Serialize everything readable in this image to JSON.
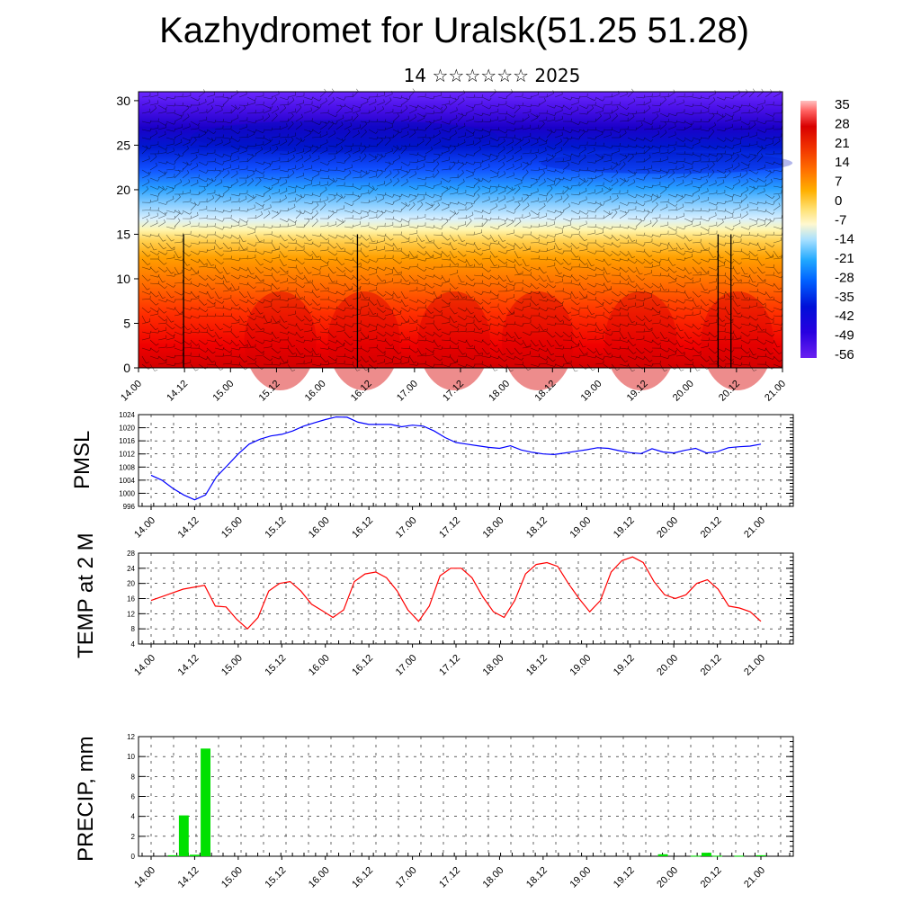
{
  "header": {
    "title": "Kazhydromet for Uralsk(51.25 51.28)",
    "subtitle": "14 ☆☆☆☆☆☆ 2025"
  },
  "time_labels": [
    "14.00",
    "14.12",
    "15.00",
    "15.12",
    "16.00",
    "16.12",
    "17.00",
    "17.12",
    "18.00",
    "18.12",
    "19.00",
    "19.12",
    "20.00",
    "20.12",
    "21.00"
  ],
  "colors": {
    "pmsl_line": "#0000ff",
    "temp_line": "#ff0000",
    "precip_bar": "#00e000"
  },
  "chart_data": [
    {
      "type": "heatmap",
      "name": "cross-section",
      "xlabel": "",
      "ylabel": "",
      "ylim": [
        0,
        31
      ],
      "y_ticks": [
        0,
        5,
        10,
        15,
        20,
        25,
        30
      ],
      "colorbar_labels": [
        "35",
        "28",
        "21",
        "14",
        "7",
        "0",
        "-7",
        "-14",
        "-21",
        "-28",
        "-35",
        "-42",
        "-49",
        "-56"
      ],
      "colorbar_range": [
        -63,
        42
      ],
      "wind_barbs": true
    },
    {
      "type": "line",
      "name": "pmsl",
      "ylabel": "PMSL",
      "ylim": [
        996,
        1024
      ],
      "y_ticks": [
        996,
        1000,
        1004,
        1008,
        1012,
        1016,
        1020,
        1024
      ],
      "grid": true,
      "values": [
        1005.5,
        1004,
        1001.5,
        999.5,
        998,
        999.5,
        1005,
        1008.5,
        1012,
        1015,
        1016.5,
        1017.5,
        1018,
        1019,
        1020.5,
        1021.5,
        1022.5,
        1023.3,
        1023.2,
        1021.7,
        1021,
        1021,
        1021,
        1020.3,
        1020.8,
        1020.5,
        1019,
        1017,
        1015.5,
        1015,
        1014.5,
        1014,
        1013.7,
        1014.5,
        1013.2,
        1012.5,
        1012,
        1011.8,
        1012.3,
        1012.8,
        1013.3,
        1013.9,
        1013.7,
        1013,
        1012.4,
        1012.1,
        1013.6,
        1012.6,
        1012.3,
        1013.1,
        1013.7,
        1012.3,
        1012.7,
        1013.9,
        1014.2,
        1014.4,
        1015
      ]
    },
    {
      "type": "line",
      "name": "temp",
      "ylabel": "TEMP at 2 M",
      "ylim": [
        4,
        28
      ],
      "y_ticks": [
        4,
        8,
        12,
        16,
        20,
        24,
        28
      ],
      "grid": true,
      "values": [
        15.5,
        16.5,
        17.5,
        18.5,
        19,
        19.5,
        14,
        13.8,
        10.5,
        8,
        11,
        18,
        20,
        20.5,
        18,
        14.5,
        12.8,
        11,
        13,
        20.5,
        22.5,
        23,
        21.5,
        18,
        13,
        10,
        14,
        22,
        24,
        24,
        21.5,
        16.5,
        12.5,
        11,
        15.5,
        22.5,
        25,
        25.5,
        24.5,
        20,
        16,
        12.5,
        15.5,
        23,
        26,
        27,
        25.5,
        20.5,
        17,
        16,
        17,
        20,
        21,
        18.5,
        14,
        13.5,
        12.5,
        10
      ]
    },
    {
      "type": "bar",
      "name": "precip",
      "ylabel": "PRECIP, mm",
      "ylim": [
        0,
        12
      ],
      "y_ticks": [
        0,
        2,
        4,
        6,
        8,
        10,
        12
      ],
      "grid": true,
      "values": [
        0,
        0,
        0.1,
        4.1,
        0.15,
        10.8,
        0,
        0,
        0,
        0,
        0,
        0,
        0,
        0,
        0,
        0,
        0,
        0,
        0,
        0,
        0,
        0,
        0,
        0,
        0,
        0,
        0,
        0,
        0,
        0,
        0,
        0,
        0,
        0,
        0,
        0,
        0,
        0,
        0,
        0,
        0,
        0,
        0,
        0,
        0,
        0,
        0,
        0.2,
        0,
        0,
        0.05,
        0.35,
        0.05,
        0,
        0.05,
        0,
        0.1
      ]
    }
  ]
}
